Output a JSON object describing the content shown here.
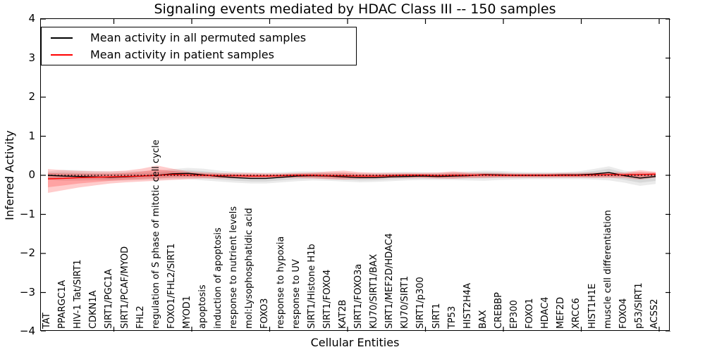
{
  "chart_data": {
    "type": "line",
    "title": "Signaling events mediated by HDAC Class III -- 150 samples",
    "xlabel": "Cellular Entities",
    "ylabel": "Inferred Activity",
    "ylim": [
      -4,
      4
    ],
    "yticks": [
      4,
      3,
      2,
      1,
      0,
      -1,
      -2,
      -3,
      -4
    ],
    "grid": false,
    "legend_position": "upper left",
    "zero_reference_line": 0,
    "categories": [
      "TAT",
      "PPARGC1A",
      "HIV-1 Tat/SIRT1",
      "CDKN1A",
      "SIRT1/PGC1A",
      "SIRT1/PCAF/MYOD",
      "FHL2",
      "regulation of S phase of mitotic cell cycle",
      "FOXO1/FHL2/SIRT1",
      "MYOD1",
      "apoptosis",
      "induction of apoptosis",
      "response to nutrient levels",
      "mol:Lysophosphatidic acid",
      "FOXO3",
      "response to hypoxia",
      "response to UV",
      "SIRT1/Histone H1b",
      "SIRT1/FOXO4",
      "KAT2B",
      "SIRT1/FOXO3a",
      "KU70/SIRT1/BAX",
      "SIRT1/MEF2D/HDAC4",
      "KU70/SIRT1",
      "SIRT1/p300",
      "SIRT1",
      "TP53",
      "HIST2H4A",
      "BAX",
      "CREBBP",
      "EP300",
      "FOXO1",
      "HDAC4",
      "MEF2D",
      "XRCC6",
      "HIST1H1E",
      "muscle cell differentiation",
      "FOXO4",
      "p53/SIRT1",
      "ACSS2"
    ],
    "series": [
      {
        "name": "Mean activity in all permuted samples",
        "color": "#000000",
        "values": [
          0.0,
          -0.02,
          -0.03,
          -0.04,
          -0.05,
          -0.04,
          -0.02,
          0.0,
          0.04,
          0.05,
          0.01,
          -0.03,
          -0.06,
          -0.08,
          -0.08,
          -0.05,
          -0.02,
          -0.01,
          -0.02,
          -0.04,
          -0.06,
          -0.06,
          -0.04,
          -0.03,
          -0.02,
          -0.03,
          -0.02,
          -0.01,
          0.02,
          0.01,
          0.0,
          0.0,
          0.0,
          0.01,
          0.01,
          0.03,
          0.07,
          -0.01,
          -0.07,
          -0.03
        ]
      },
      {
        "name": "Mean activity in patient samples",
        "color": "#ff0000",
        "values": [
          -0.09,
          -0.08,
          -0.06,
          -0.05,
          -0.04,
          -0.03,
          -0.02,
          0.0,
          0.02,
          0.01,
          0.0,
          -0.01,
          -0.01,
          -0.02,
          -0.02,
          -0.01,
          0.0,
          0.0,
          -0.01,
          -0.01,
          -0.02,
          -0.02,
          -0.01,
          0.0,
          0.0,
          -0.01,
          0.0,
          0.0,
          0.01,
          0.0,
          0.0,
          0.0,
          0.0,
          0.0,
          0.0,
          0.01,
          0.02,
          0.01,
          0.02,
          0.03
        ]
      }
    ],
    "bands": [
      {
        "name": "permuted-samples-spread-band",
        "color": "rgba(0,0,0,0.08)",
        "upper": [
          0.1,
          0.14,
          0.13,
          0.11,
          0.1,
          0.1,
          0.11,
          0.12,
          0.16,
          0.19,
          0.17,
          0.12,
          0.09,
          0.07,
          0.07,
          0.08,
          0.1,
          0.1,
          0.08,
          0.07,
          0.06,
          0.07,
          0.08,
          0.09,
          0.08,
          0.07,
          0.08,
          0.1,
          0.12,
          0.11,
          0.09,
          0.08,
          0.08,
          0.08,
          0.1,
          0.16,
          0.23,
          0.12,
          0.07,
          0.07
        ],
        "lower": [
          -0.12,
          -0.14,
          -0.14,
          -0.13,
          -0.14,
          -0.13,
          -0.12,
          -0.11,
          -0.1,
          -0.1,
          -0.13,
          -0.16,
          -0.19,
          -0.21,
          -0.21,
          -0.18,
          -0.15,
          -0.13,
          -0.14,
          -0.16,
          -0.18,
          -0.17,
          -0.15,
          -0.13,
          -0.12,
          -0.12,
          -0.12,
          -0.13,
          -0.14,
          -0.12,
          -0.11,
          -0.1,
          -0.1,
          -0.1,
          -0.1,
          -0.11,
          -0.13,
          -0.19,
          -0.27,
          -0.22
        ]
      },
      {
        "name": "patient-samples-spread-band",
        "color": "rgba(255,0,0,0.20)",
        "upper": [
          0.16,
          0.13,
          0.11,
          0.1,
          0.1,
          0.12,
          0.17,
          0.25,
          0.17,
          0.1,
          0.07,
          0.06,
          0.06,
          0.06,
          0.05,
          0.05,
          0.06,
          0.07,
          0.1,
          0.12,
          0.08,
          0.06,
          0.06,
          0.06,
          0.06,
          0.07,
          0.1,
          0.07,
          0.06,
          0.06,
          0.05,
          0.05,
          0.05,
          0.06,
          0.06,
          0.07,
          0.08,
          0.07,
          0.13,
          0.09
        ],
        "lower": [
          -0.45,
          -0.38,
          -0.31,
          -0.26,
          -0.21,
          -0.18,
          -0.16,
          -0.14,
          -0.12,
          -0.1,
          -0.08,
          -0.08,
          -0.08,
          -0.08,
          -0.07,
          -0.07,
          -0.07,
          -0.08,
          -0.1,
          -0.11,
          -0.09,
          -0.08,
          -0.07,
          -0.07,
          -0.07,
          -0.08,
          -0.09,
          -0.07,
          -0.07,
          -0.06,
          -0.06,
          -0.06,
          -0.06,
          -0.06,
          -0.06,
          -0.07,
          -0.07,
          -0.07,
          -0.11,
          -0.06
        ]
      }
    ]
  },
  "legend": {
    "items": [
      {
        "label": "Mean activity in all permuted samples",
        "color": "#000000"
      },
      {
        "label": "Mean activity in patient samples",
        "color": "#ff0000"
      }
    ]
  }
}
